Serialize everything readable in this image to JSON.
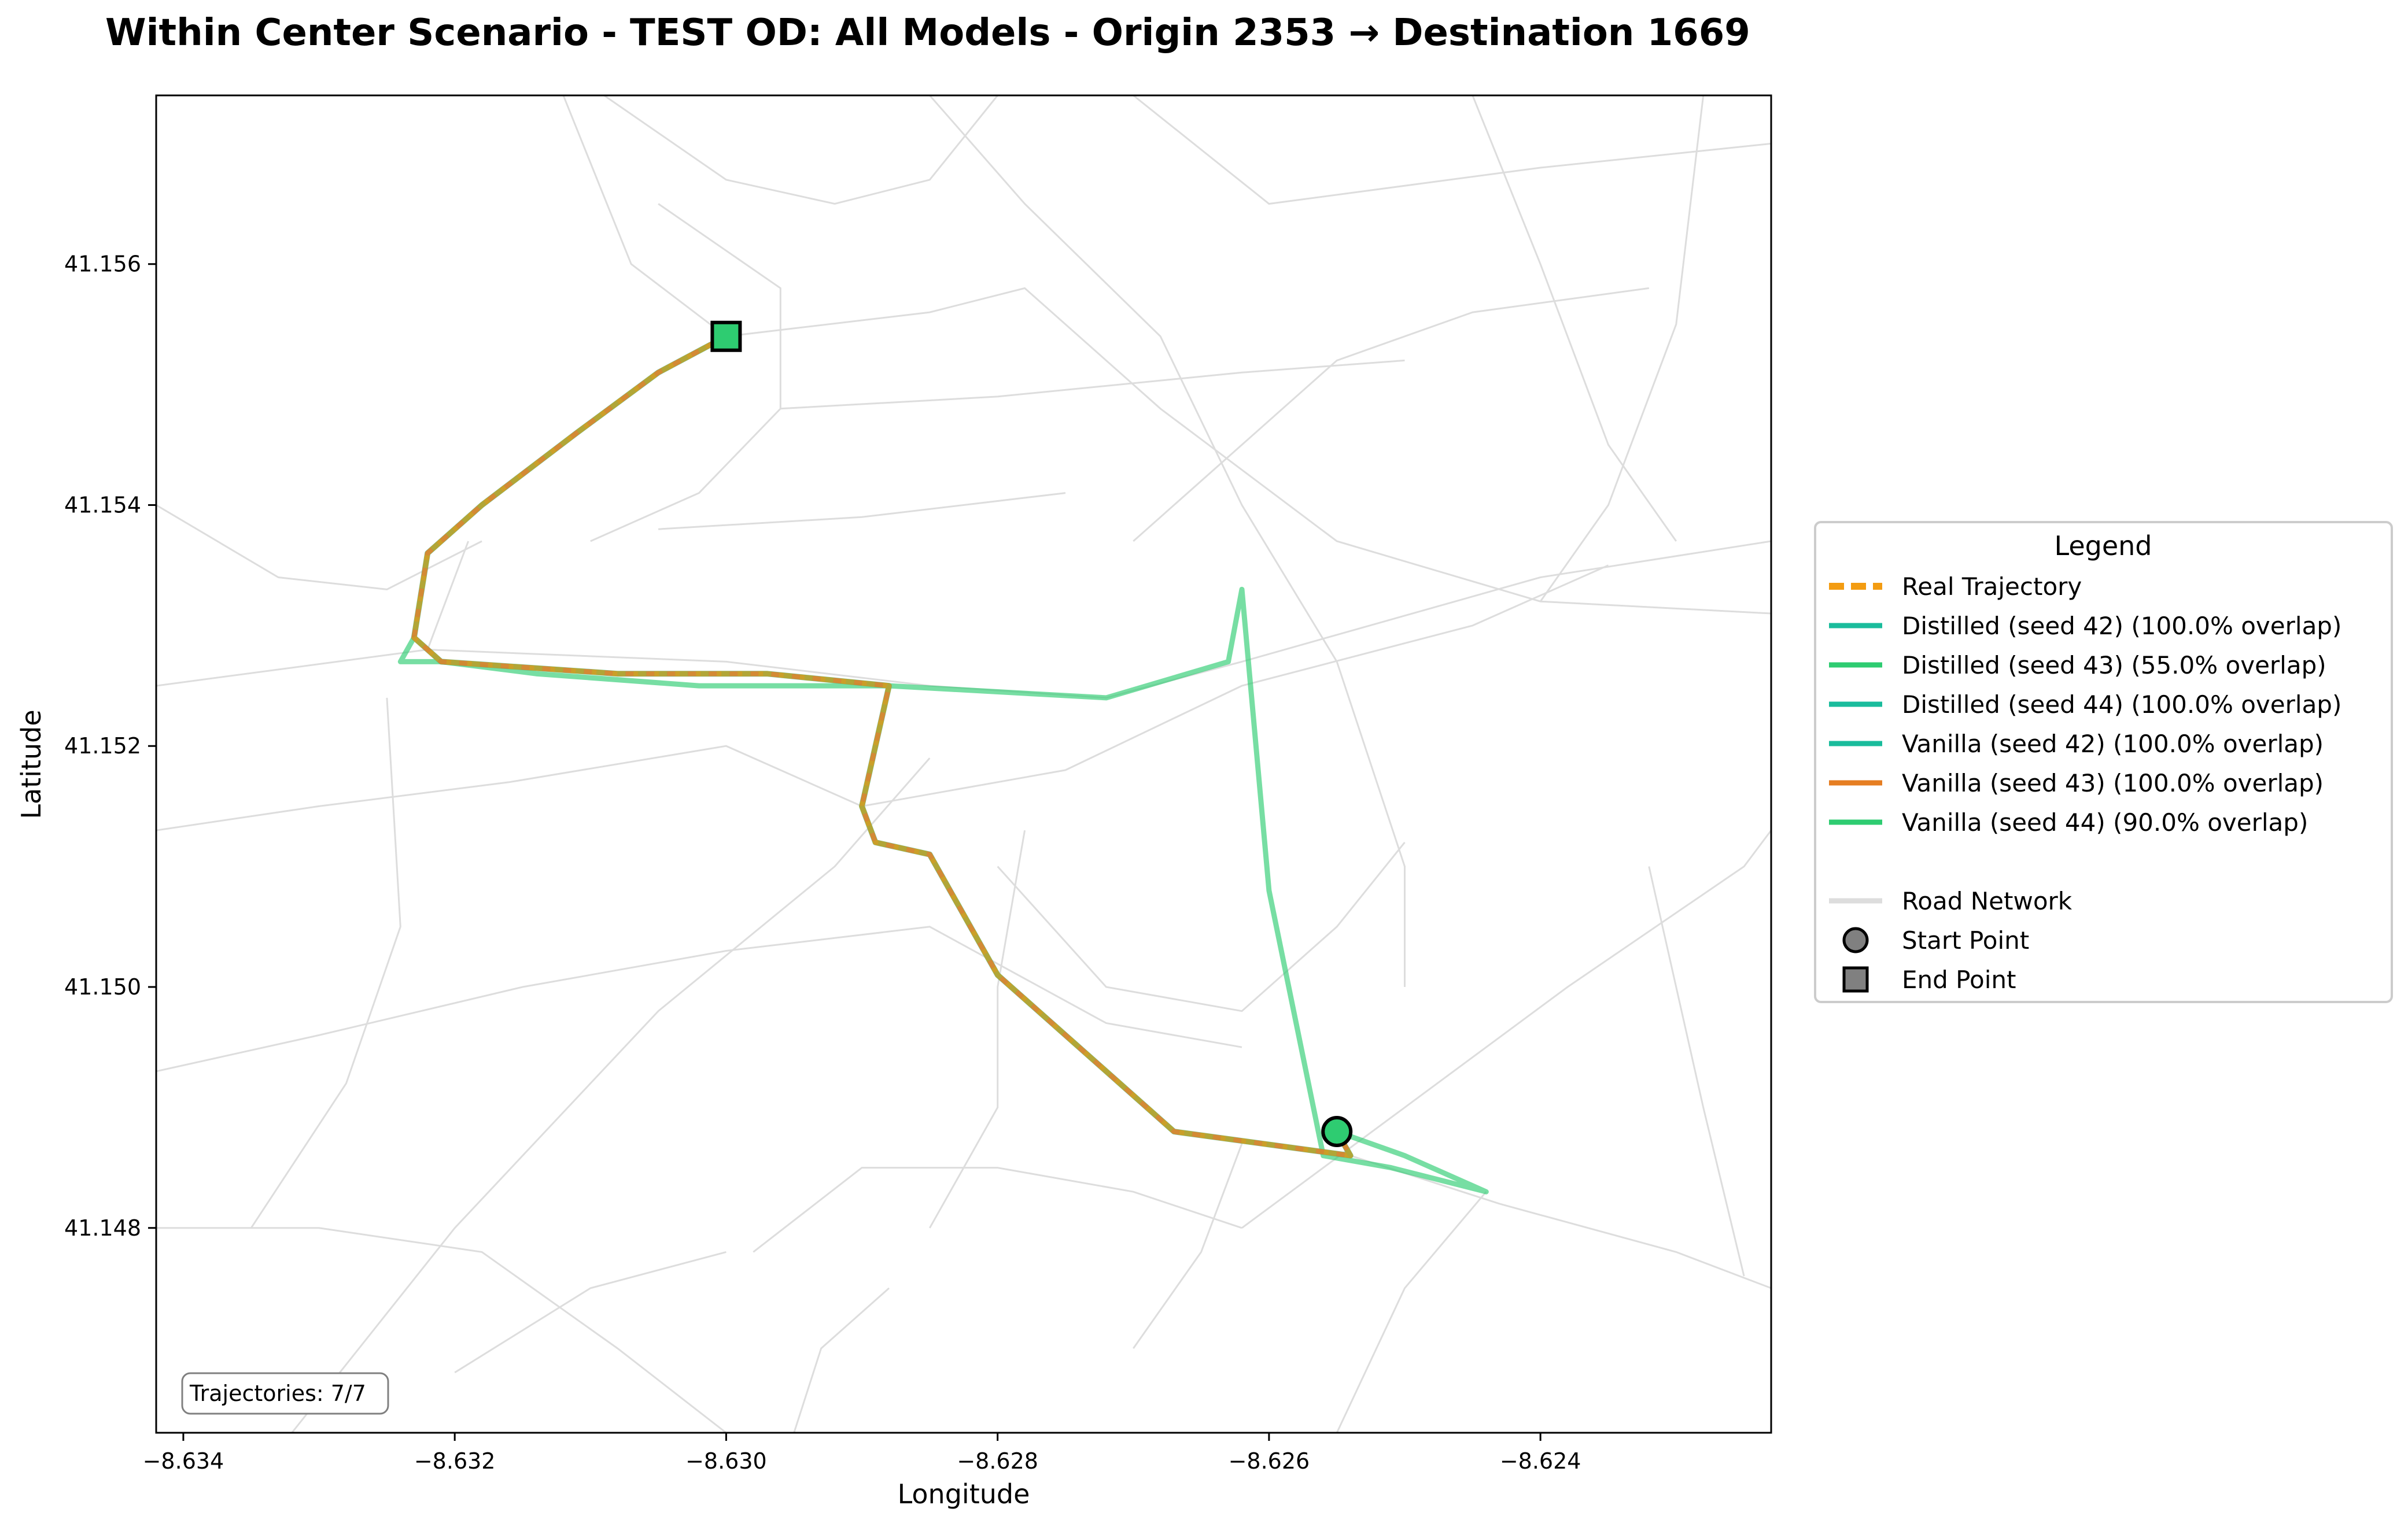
{
  "title": "Within Center Scenario - TEST OD: All Models - Origin 2353 → Destination 1669",
  "chart_data": {
    "type": "line",
    "title": "Within Center Scenario - TEST OD: All Models - Origin 2353 → Destination 1669",
    "xlabel": "Longitude",
    "ylabel": "Latitude",
    "xlim": [
      -8.6342,
      -8.6223
    ],
    "ylim": [
      41.1463,
      41.1574
    ],
    "x_ticks": [
      -8.634,
      -8.632,
      -8.63,
      -8.628,
      -8.626,
      -8.624
    ],
    "x_tick_labels": [
      "−8.634",
      "−8.632",
      "−8.630",
      "−8.628",
      "−8.626",
      "−8.624"
    ],
    "y_ticks": [
      41.148,
      41.15,
      41.152,
      41.154,
      41.156
    ],
    "y_tick_labels": [
      "41.148",
      "41.150",
      "41.152",
      "41.154",
      "41.156"
    ],
    "grid": false,
    "legend_position": "right",
    "annotation": "Trajectories: 7/7",
    "legend": {
      "title": "Legend",
      "entries": [
        {
          "label": "Real Trajectory",
          "color": "#f39c12",
          "style": "dashed"
        },
        {
          "label": "Distilled (seed 42) (100.0% overlap)",
          "color": "#1abc9c",
          "style": "solid"
        },
        {
          "label": "Distilled (seed 43) (55.0% overlap)",
          "color": "#2ecc71",
          "style": "solid"
        },
        {
          "label": "Distilled (seed 44) (100.0% overlap)",
          "color": "#1abc9c",
          "style": "solid"
        },
        {
          "label": "Vanilla (seed 42) (100.0% overlap)",
          "color": "#1abc9c",
          "style": "solid"
        },
        {
          "label": "Vanilla (seed 43) (100.0% overlap)",
          "color": "#e67e22",
          "style": "solid"
        },
        {
          "label": "Vanilla (seed 44) (90.0% overlap)",
          "color": "#2ecc71",
          "style": "solid"
        },
        {
          "label": "Road Network",
          "color": "#dddddd",
          "style": "solid"
        },
        {
          "label": "Start Point",
          "color": "#808080",
          "style": "circle"
        },
        {
          "label": "End Point",
          "color": "#808080",
          "style": "square"
        }
      ]
    },
    "start_point": {
      "x": -8.6255,
      "y": 41.1488
    },
    "end_point": {
      "x": -8.63,
      "y": 41.1554
    },
    "main_route": {
      "x": [
        -8.6255,
        -8.6254,
        -8.6267,
        -8.6272,
        -8.628,
        -8.6285,
        -8.6289,
        -8.629,
        -8.6288,
        -8.6297,
        -8.6308,
        -8.6321,
        -8.6323,
        -8.6322,
        -8.6318,
        -8.6311,
        -8.6305,
        -8.63
      ],
      "y": [
        41.1488,
        41.1486,
        41.1488,
        41.1493,
        41.1501,
        41.1511,
        41.1512,
        41.1515,
        41.1525,
        41.1526,
        41.1526,
        41.1527,
        41.1529,
        41.1536,
        41.154,
        41.1546,
        41.1551,
        41.1554
      ]
    },
    "alt_route": {
      "name": "Distilled (seed 43) (55.0% overlap)",
      "x": [
        -8.6255,
        -8.625,
        -8.6244,
        -8.6251,
        -8.6256,
        -8.626,
        -8.6262,
        -8.6263,
        -8.6272,
        -8.6288,
        -8.6302,
        -8.6314,
        -8.6321,
        -8.6324,
        -8.6323
      ],
      "y": [
        41.1488,
        41.1486,
        41.1483,
        41.1485,
        41.1486,
        41.1508,
        41.1533,
        41.1527,
        41.1524,
        41.1525,
        41.1525,
        41.1526,
        41.1527,
        41.1527,
        41.1529
      ]
    },
    "route_overlays": [
      {
        "name": "Vanilla (seed 43) (100.0% overlap)",
        "color": "#e67e22",
        "style": "solid"
      },
      {
        "name": "Distilled (seed 42) (100.0% overlap)",
        "color": "#1abc9c",
        "style": "dashed"
      },
      {
        "name": "Real Trajectory",
        "color": "#f39c12",
        "style": "dashed"
      }
    ]
  },
  "road_network": [
    [
      [
        -8.6342,
        41.1525
      ],
      [
        -8.6322,
        41.1528
      ],
      [
        -8.63,
        41.1527
      ],
      [
        -8.6285,
        41.1525
      ],
      [
        -8.6272,
        41.1524
      ],
      [
        -8.6262,
        41.1527
      ],
      [
        -8.624,
        41.1534
      ],
      [
        -8.6223,
        41.1537
      ]
    ],
    [
      [
        -8.6342,
        41.1513
      ],
      [
        -8.633,
        41.1515
      ],
      [
        -8.6316,
        41.1517
      ],
      [
        -8.63,
        41.152
      ],
      [
        -8.629,
        41.1515
      ]
    ],
    [
      [
        -8.6342,
        41.154
      ],
      [
        -8.6333,
        41.1534
      ],
      [
        -8.6325,
        41.1533
      ],
      [
        -8.6318,
        41.1537
      ]
    ],
    [
      [
        -8.6325,
        41.1524
      ],
      [
        -8.6324,
        41.1505
      ],
      [
        -8.6328,
        41.1492
      ],
      [
        -8.6335,
        41.148
      ]
    ],
    [
      [
        -8.6322,
        41.1528
      ],
      [
        -8.6319,
        41.1537
      ]
    ],
    [
      [
        -8.63,
        41.1554
      ],
      [
        -8.6307,
        41.156
      ],
      [
        -8.6312,
        41.1574
      ]
    ],
    [
      [
        -8.63,
        41.1554
      ],
      [
        -8.6285,
        41.1556
      ],
      [
        -8.6278,
        41.1558
      ],
      [
        -8.6268,
        41.1548
      ],
      [
        -8.6255,
        41.1537
      ],
      [
        -8.624,
        41.1532
      ],
      [
        -8.6223,
        41.1531
      ]
    ],
    [
      [
        -8.6285,
        41.1574
      ],
      [
        -8.6278,
        41.1565
      ],
      [
        -8.6268,
        41.1554
      ],
      [
        -8.6262,
        41.154
      ],
      [
        -8.6255,
        41.1527
      ],
      [
        -8.625,
        41.151
      ],
      [
        -8.625,
        41.15
      ]
    ],
    [
      [
        -8.6309,
        41.1574
      ],
      [
        -8.63,
        41.1567
      ],
      [
        -8.6292,
        41.1565
      ],
      [
        -8.6285,
        41.1567
      ],
      [
        -8.628,
        41.1574
      ]
    ],
    [
      [
        -8.6305,
        41.1565
      ],
      [
        -8.6296,
        41.1558
      ],
      [
        -8.6296,
        41.1548
      ],
      [
        -8.6302,
        41.1541
      ],
      [
        -8.631,
        41.1537
      ]
    ],
    [
      [
        -8.6296,
        41.1548
      ],
      [
        -8.628,
        41.1549
      ],
      [
        -8.6262,
        41.1551
      ],
      [
        -8.625,
        41.1552
      ]
    ],
    [
      [
        -8.6305,
        41.1538
      ],
      [
        -8.629,
        41.1539
      ],
      [
        -8.6275,
        41.1541
      ]
    ],
    [
      [
        -8.627,
        41.1537
      ],
      [
        -8.6262,
        41.1545
      ],
      [
        -8.6255,
        41.1552
      ],
      [
        -8.6245,
        41.1556
      ],
      [
        -8.6232,
        41.1558
      ]
    ],
    [
      [
        -8.6245,
        41.1574
      ],
      [
        -8.624,
        41.156
      ],
      [
        -8.6235,
        41.1545
      ],
      [
        -8.623,
        41.1537
      ]
    ],
    [
      [
        -8.6223,
        41.157
      ],
      [
        -8.624,
        41.1568
      ],
      [
        -8.626,
        41.1565
      ],
      [
        -8.627,
        41.1574
      ]
    ],
    [
      [
        -8.6228,
        41.1574
      ],
      [
        -8.623,
        41.1555
      ],
      [
        -8.6235,
        41.154
      ],
      [
        -8.624,
        41.1532
      ]
    ],
    [
      [
        -8.6342,
        41.1493
      ],
      [
        -8.633,
        41.1496
      ],
      [
        -8.6315,
        41.15
      ],
      [
        -8.63,
        41.1503
      ],
      [
        -8.6285,
        41.1505
      ],
      [
        -8.6272,
        41.1497
      ],
      [
        -8.6262,
        41.1495
      ]
    ],
    [
      [
        -8.6332,
        41.1463
      ],
      [
        -8.632,
        41.148
      ],
      [
        -8.6305,
        41.1498
      ],
      [
        -8.6292,
        41.151
      ],
      [
        -8.6285,
        41.1519
      ]
    ],
    [
      [
        -8.6342,
        41.148
      ],
      [
        -8.633,
        41.148
      ],
      [
        -8.6318,
        41.1478
      ],
      [
        -8.6308,
        41.147
      ],
      [
        -8.63,
        41.1463
      ]
    ],
    [
      [
        -8.6285,
        41.148
      ],
      [
        -8.628,
        41.149
      ],
      [
        -8.628,
        41.15
      ],
      [
        -8.6278,
        41.1513
      ]
    ],
    [
      [
        -8.629,
        41.1515
      ],
      [
        -8.6275,
        41.1518
      ],
      [
        -8.6262,
        41.1525
      ],
      [
        -8.6245,
        41.153
      ],
      [
        -8.6235,
        41.1535
      ]
    ],
    [
      [
        -8.628,
        41.151
      ],
      [
        -8.6272,
        41.15
      ],
      [
        -8.6262,
        41.1498
      ],
      [
        -8.6255,
        41.1505
      ],
      [
        -8.625,
        41.1512
      ]
    ],
    [
      [
        -8.6262,
        41.148
      ],
      [
        -8.625,
        41.149
      ],
      [
        -8.6238,
        41.15
      ],
      [
        -8.6225,
        41.151
      ],
      [
        -8.6223,
        41.1513
      ]
    ],
    [
      [
        -8.6254,
        41.1486
      ],
      [
        -8.6243,
        41.1482
      ],
      [
        -8.623,
        41.1478
      ],
      [
        -8.6223,
        41.1475
      ]
    ],
    [
      [
        -8.6244,
        41.1483
      ],
      [
        -8.625,
        41.1475
      ],
      [
        -8.6255,
        41.1463
      ]
    ],
    [
      [
        -8.6232,
        41.151
      ],
      [
        -8.6228,
        41.149
      ],
      [
        -8.6225,
        41.1476
      ]
    ],
    [
      [
        -8.6298,
        41.1478
      ],
      [
        -8.629,
        41.1485
      ],
      [
        -8.628,
        41.1485
      ],
      [
        -8.627,
        41.1483
      ],
      [
        -8.6262,
        41.148
      ]
    ],
    [
      [
        -8.627,
        41.147
      ],
      [
        -8.6265,
        41.1478
      ],
      [
        -8.6262,
        41.1487
      ]
    ],
    [
      [
        -8.632,
        41.1468
      ],
      [
        -8.631,
        41.1475
      ],
      [
        -8.63,
        41.1478
      ]
    ],
    [
      [
        -8.6295,
        41.1463
      ],
      [
        -8.6293,
        41.147
      ],
      [
        -8.6288,
        41.1475
      ]
    ]
  ]
}
